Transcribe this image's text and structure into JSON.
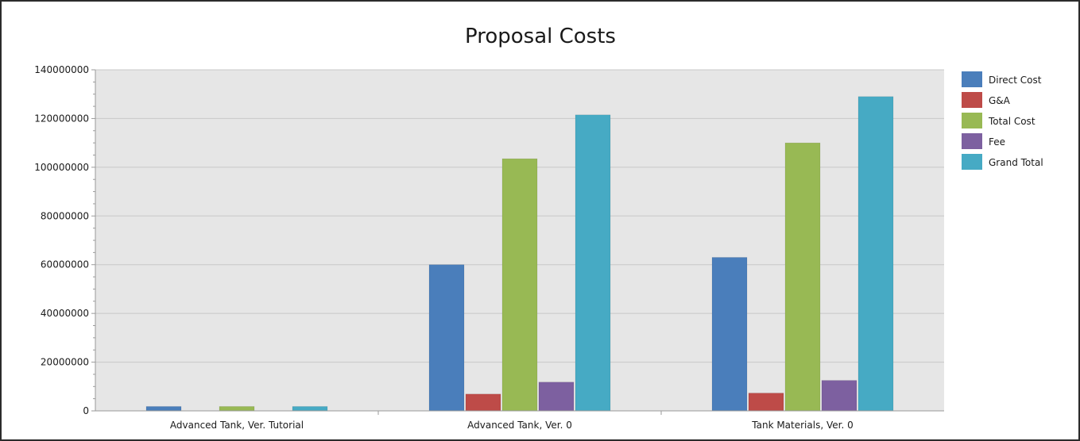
{
  "chart_data": {
    "type": "bar",
    "title": "Proposal Costs",
    "xlabel": "",
    "ylabel": "",
    "categories": [
      "Advanced Tank, Ver. Tutorial",
      "Advanced Tank, Ver. 0",
      "Tank Materials, Ver. 0"
    ],
    "y_ticks": [
      "0",
      "20000000",
      "40000000",
      "60000000",
      "80000000",
      "100000000",
      "120000000",
      "140000000"
    ],
    "ylim": [
      0,
      140000000
    ],
    "grid": true,
    "legend_position": "right",
    "series": [
      {
        "name": "Direct Cost",
        "color": "#4a7ebb",
        "values": [
          1800000,
          60000000,
          63000000
        ]
      },
      {
        "name": "G&A",
        "color": "#be4b48",
        "values": [
          0,
          6900000,
          7300000
        ]
      },
      {
        "name": "Total Cost",
        "color": "#98b954",
        "values": [
          1800000,
          103500000,
          110000000
        ]
      },
      {
        "name": "Fee",
        "color": "#7d60a0",
        "values": [
          0,
          11800000,
          12500000
        ]
      },
      {
        "name": "Grand Total",
        "color": "#46aac4",
        "values": [
          1800000,
          121500000,
          129000000
        ]
      }
    ],
    "colors": {
      "plot_background": "#e6e6e6",
      "gridline": "#c8c8c8",
      "axis": "#9a9a9a"
    }
  }
}
